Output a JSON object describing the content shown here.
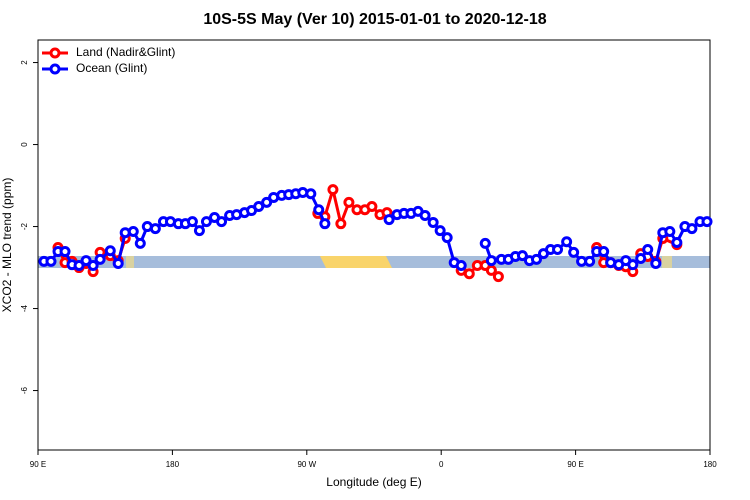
{
  "chart_data": {
    "type": "line",
    "title": "10S-5S May (Ver 10)   2015-01-01 to 2020-12-18",
    "xlabel": "Longitude (deg E)",
    "ylabel": "XCO2 - MLO trend (ppm)",
    "xlim": [
      90,
      540
    ],
    "xticks": [
      {
        "value": 90,
        "label": "90 E"
      },
      180,
      {
        "value": 270,
        "label": "90 W"
      },
      {
        "value": 360,
        "label": "0"
      },
      {
        "value": 450,
        "label": "90 E"
      },
      {
        "value": 540,
        "label": "180"
      }
    ],
    "ylim": [
      -7.45,
      2.55
    ],
    "yticks": [
      2,
      0,
      -2,
      -4,
      -6
    ],
    "legend": "top-left",
    "series": [
      {
        "name": "Land (Nadir&Glint)",
        "color": "#ff0000",
        "x": [
          103.4,
          108.1,
          112.8,
          117.5,
          122.2,
          126.9,
          131.6,
          138.4,
          143.7,
          148.4,
          null,
          277.4,
          282.1,
          287.5,
          292.8,
          298.2,
          303.6,
          308.9,
          313.6,
          319.0,
          323.7,
          null,
          373.4,
          378.8,
          384.2,
          389.5,
          393.6,
          398.3,
          null,
          464.1,
          468.8,
          473.5,
          478.9,
          483.6,
          488.3,
          493.6,
          498.3,
          503.7,
          508.4,
          517.8
        ],
        "values": [
          -2.51,
          -2.88,
          -2.85,
          -3.0,
          -2.9,
          -3.1,
          -2.63,
          -2.71,
          -2.83,
          -2.29,
          null,
          -1.68,
          -1.76,
          -1.1,
          -1.93,
          -1.41,
          -1.59,
          -1.59,
          -1.51,
          -1.71,
          -1.66,
          null,
          -3.07,
          -3.15,
          -2.95,
          -2.95,
          -3.07,
          -3.22,
          null,
          -2.51,
          -2.88,
          -2.88,
          -2.95,
          -2.98,
          -3.1,
          -2.66,
          -2.73,
          -2.85,
          -2.29,
          -2.44
        ]
      },
      {
        "name": "Ocean (Glint)",
        "color": "#0000ff",
        "x": [
          94.0,
          98.7,
          103.4,
          108.1,
          112.8,
          117.5,
          122.2,
          126.9,
          131.6,
          138.4,
          143.7,
          148.4,
          153.8,
          158.5,
          163.2,
          168.6,
          174.0,
          178.7,
          184.0,
          188.7,
          193.4,
          198.1,
          202.8,
          208.2,
          212.9,
          218.3,
          223.0,
          228.3,
          233.0,
          237.8,
          243.1,
          247.8,
          253.2,
          257.9,
          262.6,
          267.3,
          272.7,
          278.0,
          282.1,
          null,
          325.1,
          330.4,
          335.1,
          339.8,
          344.5,
          349.2,
          354.6,
          359.3,
          364.0,
          368.7,
          373.4,
          null,
          389.5,
          393.6,
          400.3,
          405.0,
          409.7,
          414.4,
          419.1,
          423.8,
          428.5,
          433.2,
          437.9,
          444.0,
          448.7,
          454.0,
          459.4,
          464.1,
          468.8,
          473.5,
          478.9,
          483.6,
          488.3,
          493.6,
          498.3,
          503.7,
          508.4,
          513.1,
          517.8,
          523.2,
          527.9,
          533.3,
          538.0
        ],
        "values": [
          -2.85,
          -2.85,
          -2.61,
          -2.61,
          -2.93,
          -2.95,
          -2.83,
          -2.95,
          -2.8,
          -2.59,
          -2.9,
          -2.15,
          -2.12,
          -2.41,
          -2.0,
          -2.05,
          -1.88,
          -1.88,
          -1.93,
          -1.93,
          -1.88,
          -2.1,
          -1.88,
          -1.78,
          -1.88,
          -1.73,
          -1.71,
          -1.66,
          -1.61,
          -1.51,
          -1.41,
          -1.29,
          -1.24,
          -1.22,
          -1.2,
          -1.17,
          -1.2,
          -1.59,
          -1.93,
          null,
          -1.83,
          -1.71,
          -1.68,
          -1.68,
          -1.63,
          -1.73,
          -1.9,
          -2.1,
          -2.27,
          -2.88,
          -2.95,
          null,
          -2.41,
          -2.83,
          -2.8,
          -2.8,
          -2.73,
          -2.71,
          -2.83,
          -2.8,
          -2.66,
          -2.56,
          -2.56,
          -2.37,
          -2.63,
          -2.85,
          -2.85,
          -2.61,
          -2.61,
          -2.88,
          -2.93,
          -2.83,
          -2.93,
          -2.78,
          -2.56,
          -2.9,
          -2.15,
          -2.12,
          -2.39,
          -2.0,
          -2.05,
          -1.88,
          -1.88
        ]
      }
    ]
  }
}
